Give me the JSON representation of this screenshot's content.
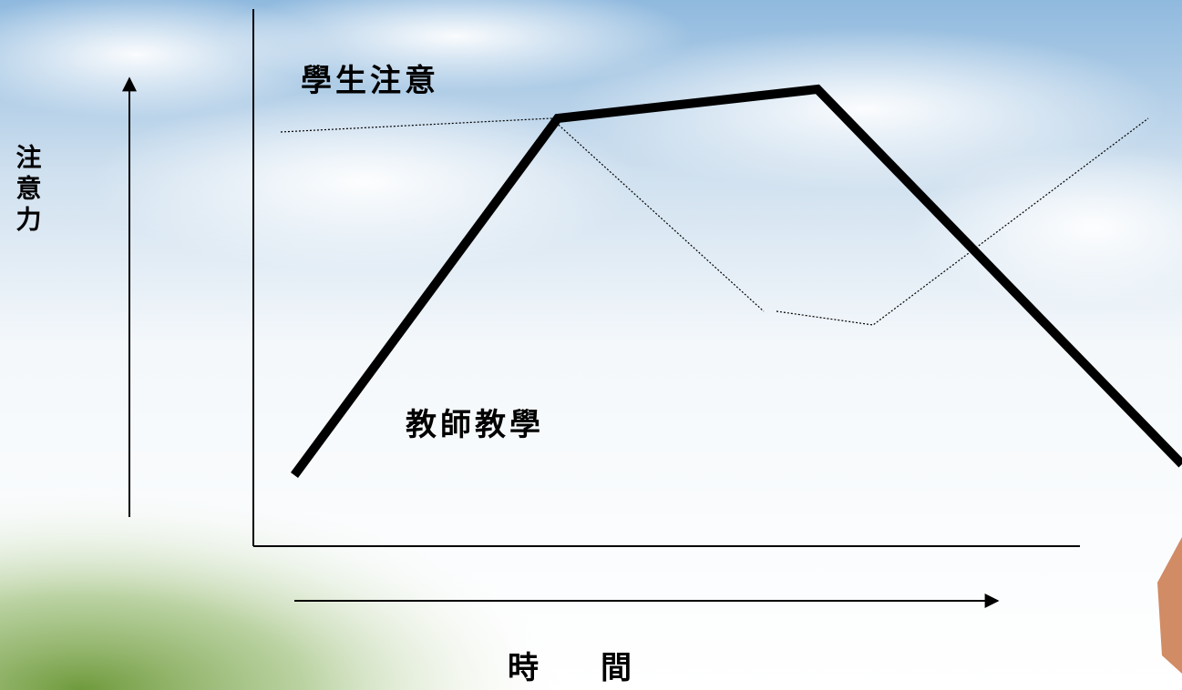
{
  "diagram": {
    "labels": {
      "student_attention": "學生注意",
      "teacher_teaching": "教師教學",
      "y_axis": "注意力",
      "x_axis": "時　　間"
    }
  }
}
